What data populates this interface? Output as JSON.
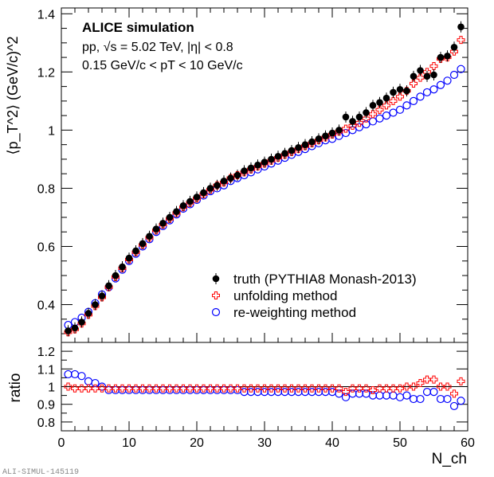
{
  "chart_data": [
    {
      "panel": "main",
      "type": "scatter",
      "title": "ALICE simulation",
      "annotations": [
        "pp, √s = 5.02 TeV, |η| < 0.8",
        "0.15 GeV/c < pT < 10 GeV/c"
      ],
      "ylabel": "⟨p_T^2⟩ (GeV/c)^2",
      "xlim": [
        0,
        60
      ],
      "ylim": [
        0.27,
        1.42
      ],
      "yticks": [
        0.4,
        0.6,
        0.8,
        1,
        1.2,
        1.4
      ],
      "legend_position": "bottom-right",
      "x": [
        1,
        2,
        3,
        4,
        5,
        6,
        7,
        8,
        9,
        10,
        11,
        12,
        13,
        14,
        15,
        16,
        17,
        18,
        19,
        20,
        21,
        22,
        23,
        24,
        25,
        26,
        27,
        28,
        29,
        30,
        31,
        32,
        33,
        34,
        35,
        36,
        37,
        38,
        39,
        40,
        41,
        42,
        43,
        44,
        45,
        46,
        47,
        48,
        49,
        50,
        51,
        52,
        53,
        54,
        55,
        56,
        57,
        58,
        59
      ],
      "series": [
        {
          "name": "truth (PYTHIA8 Monash-2013)",
          "color": "#000000",
          "marker": "filled-circle",
          "values": [
            0.31,
            0.32,
            0.34,
            0.37,
            0.4,
            0.43,
            0.465,
            0.5,
            0.53,
            0.56,
            0.585,
            0.61,
            0.635,
            0.66,
            0.68,
            0.7,
            0.72,
            0.74,
            0.755,
            0.77,
            0.785,
            0.8,
            0.81,
            0.825,
            0.835,
            0.845,
            0.86,
            0.87,
            0.88,
            0.89,
            0.9,
            0.91,
            0.92,
            0.93,
            0.94,
            0.95,
            0.96,
            0.97,
            0.98,
            0.99,
            1.0,
            1.045,
            1.03,
            1.045,
            1.06,
            1.085,
            1.095,
            1.11,
            1.13,
            1.14,
            1.135,
            1.185,
            1.205,
            1.185,
            1.19,
            1.25,
            1.255,
            1.285,
            1.355
          ]
        },
        {
          "name": "unfolding method",
          "color": "#ff0000",
          "marker": "open-cross",
          "values": [
            0.305,
            0.315,
            0.335,
            0.365,
            0.395,
            0.425,
            0.46,
            0.495,
            0.525,
            0.555,
            0.58,
            0.605,
            0.63,
            0.655,
            0.675,
            0.695,
            0.715,
            0.735,
            0.75,
            0.765,
            0.78,
            0.795,
            0.81,
            0.82,
            0.835,
            0.845,
            0.855,
            0.865,
            0.875,
            0.885,
            0.895,
            0.905,
            0.915,
            0.925,
            0.935,
            0.945,
            0.955,
            0.965,
            0.975,
            0.985,
            0.995,
            1.005,
            1.015,
            1.025,
            1.04,
            1.055,
            1.07,
            1.085,
            1.1,
            1.115,
            1.135,
            1.16,
            1.18,
            1.2,
            1.22,
            1.245,
            1.25,
            1.27,
            1.31
          ]
        },
        {
          "name": "re-weighting method",
          "color": "#0000ff",
          "marker": "open-circle",
          "values": [
            0.33,
            0.34,
            0.355,
            0.375,
            0.405,
            0.435,
            0.46,
            0.49,
            0.52,
            0.55,
            0.575,
            0.6,
            0.625,
            0.65,
            0.67,
            0.69,
            0.71,
            0.73,
            0.745,
            0.76,
            0.775,
            0.79,
            0.8,
            0.81,
            0.825,
            0.835,
            0.845,
            0.855,
            0.865,
            0.875,
            0.885,
            0.895,
            0.905,
            0.915,
            0.925,
            0.935,
            0.945,
            0.955,
            0.965,
            0.97,
            0.98,
            0.99,
            1.0,
            1.01,
            1.02,
            1.03,
            1.04,
            1.05,
            1.06,
            1.07,
            1.085,
            1.1,
            1.115,
            1.13,
            1.14,
            1.155,
            1.17,
            1.19,
            1.21
          ]
        }
      ]
    },
    {
      "panel": "ratio",
      "type": "scatter",
      "xlabel": "N_ch",
      "ylabel": "ratio",
      "xlim": [
        0,
        60
      ],
      "ylim": [
        0.75,
        1.25
      ],
      "xticks": [
        0,
        10,
        20,
        30,
        40,
        50,
        60
      ],
      "yticks": [
        0.8,
        0.9,
        1,
        1.1,
        1.2
      ],
      "reference_line": 1,
      "x": [
        1,
        2,
        3,
        4,
        5,
        6,
        7,
        8,
        9,
        10,
        11,
        12,
        13,
        14,
        15,
        16,
        17,
        18,
        19,
        20,
        21,
        22,
        23,
        24,
        25,
        26,
        27,
        28,
        29,
        30,
        31,
        32,
        33,
        34,
        35,
        36,
        37,
        38,
        39,
        40,
        41,
        42,
        43,
        44,
        45,
        46,
        47,
        48,
        49,
        50,
        51,
        52,
        53,
        54,
        55,
        56,
        57,
        58,
        59
      ],
      "series": [
        {
          "name": "unfolding method",
          "color": "#ff0000",
          "marker": "open-cross",
          "values": [
            1.0,
            0.99,
            0.99,
            0.99,
            0.99,
            0.99,
            0.99,
            0.99,
            0.99,
            0.99,
            0.99,
            0.99,
            0.99,
            0.99,
            0.99,
            0.99,
            0.99,
            0.99,
            0.99,
            0.99,
            0.99,
            0.99,
            0.99,
            0.99,
            0.99,
            0.99,
            0.99,
            0.99,
            0.99,
            0.99,
            0.99,
            0.99,
            0.99,
            0.99,
            0.99,
            0.99,
            0.99,
            0.99,
            0.99,
            0.99,
            0.99,
            0.97,
            0.99,
            0.99,
            0.99,
            0.98,
            0.99,
            0.99,
            0.99,
            0.99,
            1.0,
            1.0,
            1.02,
            1.04,
            1.04,
            1.0,
            1.0,
            0.96,
            1.03
          ]
        },
        {
          "name": "re-weighting method",
          "color": "#0000ff",
          "marker": "open-circle",
          "values": [
            1.07,
            1.07,
            1.06,
            1.03,
            1.02,
            1.0,
            0.98,
            0.98,
            0.98,
            0.98,
            0.98,
            0.98,
            0.98,
            0.98,
            0.98,
            0.98,
            0.98,
            0.98,
            0.98,
            0.98,
            0.98,
            0.98,
            0.98,
            0.98,
            0.98,
            0.98,
            0.97,
            0.97,
            0.97,
            0.97,
            0.97,
            0.97,
            0.97,
            0.97,
            0.97,
            0.97,
            0.97,
            0.97,
            0.97,
            0.97,
            0.96,
            0.94,
            0.96,
            0.96,
            0.96,
            0.95,
            0.95,
            0.95,
            0.95,
            0.94,
            0.95,
            0.93,
            0.93,
            0.97,
            0.97,
            0.93,
            0.93,
            0.89,
            0.92
          ]
        }
      ]
    }
  ],
  "watermark": "ALI-SIMUL-145119"
}
